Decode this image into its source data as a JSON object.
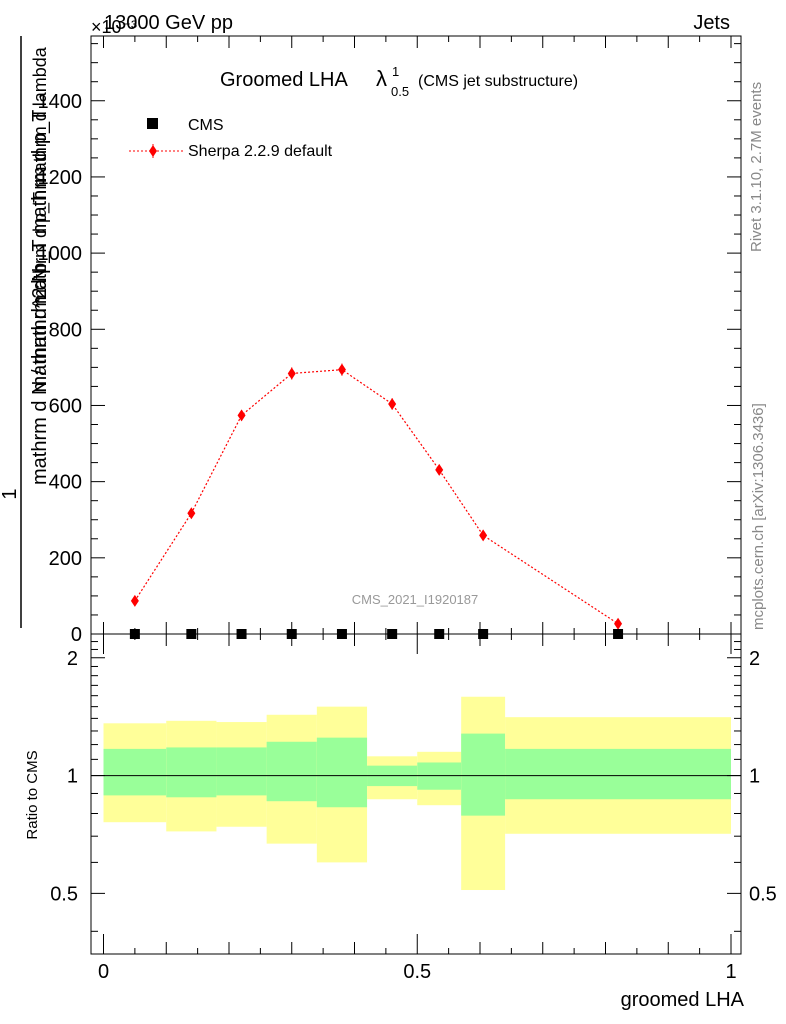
{
  "header": {
    "energy": "13000 GeV pp",
    "category": "Jets"
  },
  "side_labels": {
    "rivet": "Rivet 3.1.10,  2.7M events",
    "mcplots": "mcplots.cern.ch [arXiv:1306.3436]"
  },
  "watermark": "CMS_2021_I1920187",
  "colors": {
    "sherpa": "#ff0000",
    "band_inner": "#99ff99",
    "band_outer": "#ffff99",
    "data": "#000000"
  },
  "chart_data": [
    {
      "type": "scatter",
      "title": {
        "main": "Groomed LHA",
        "lambda": "λ",
        "sup": "1",
        "sub": "0.5",
        "note": "(CMS jet substructure)"
      },
      "ylabel": {
        "prefix": "1",
        "denominator": "mathrm d N / mathrm d p_T mathrm d p_T",
        "numerator": "mathrm d^2 N",
        "numerator_tail": "mathrm d p_T mathrm d lambda"
      },
      "y_multiplier": "×10⁻³",
      "ylim": [
        0,
        1570
      ],
      "yticks": [
        0,
        200,
        400,
        600,
        800,
        1000,
        1200,
        1400
      ],
      "ytick_labels": [
        "0",
        "200",
        "400",
        "600",
        "800",
        "1000",
        "1200",
        "1400"
      ],
      "legend": [
        "CMS",
        "Sherpa 2.2.9 default"
      ],
      "series": [
        {
          "name": "CMS",
          "marker": "square",
          "x": [
            0.05,
            0.14,
            0.22,
            0.3,
            0.38,
            0.46,
            0.535,
            0.605,
            0.82
          ],
          "y": [
            0,
            0,
            0,
            0,
            0,
            0,
            0,
            0,
            0
          ]
        },
        {
          "name": "Sherpa 2.2.9 default",
          "marker": "diamond",
          "line": "dotted",
          "x": [
            0.05,
            0.14,
            0.22,
            0.3,
            0.38,
            0.46,
            0.535,
            0.605,
            0.82
          ],
          "y": [
            87,
            317,
            574,
            684,
            694,
            604,
            431,
            259,
            27
          ],
          "yerr": [
            6,
            10,
            14,
            16,
            16,
            15,
            12,
            8,
            4
          ]
        }
      ]
    },
    {
      "type": "area",
      "ylabel": "Ratio to CMS",
      "xlabel": "groomed LHA",
      "xlim": [
        0,
        1
      ],
      "xticks": [
        0,
        0.5,
        1
      ],
      "xtick_labels": [
        "0",
        "0.5",
        "1"
      ],
      "ylim": [
        0.35,
        2.3
      ],
      "yticks": [
        0.5,
        1,
        2
      ],
      "ytick_labels": [
        "0.5",
        "1",
        "2"
      ],
      "reference_line": 1,
      "bands": [
        {
          "x_low": 0.0,
          "x_high": 0.1,
          "inner": [
            0.89,
            1.17
          ],
          "outer": [
            0.76,
            1.36
          ]
        },
        {
          "x_low": 0.1,
          "x_high": 0.18,
          "inner": [
            0.88,
            1.18
          ],
          "outer": [
            0.72,
            1.38
          ]
        },
        {
          "x_low": 0.18,
          "x_high": 0.26,
          "inner": [
            0.89,
            1.18
          ],
          "outer": [
            0.74,
            1.37
          ]
        },
        {
          "x_low": 0.26,
          "x_high": 0.34,
          "inner": [
            0.86,
            1.22
          ],
          "outer": [
            0.67,
            1.43
          ]
        },
        {
          "x_low": 0.34,
          "x_high": 0.42,
          "inner": [
            0.83,
            1.25
          ],
          "outer": [
            0.6,
            1.5
          ]
        },
        {
          "x_low": 0.42,
          "x_high": 0.5,
          "inner": [
            0.94,
            1.06
          ],
          "outer": [
            0.87,
            1.12
          ]
        },
        {
          "x_low": 0.5,
          "x_high": 0.57,
          "inner": [
            0.92,
            1.08
          ],
          "outer": [
            0.84,
            1.15
          ]
        },
        {
          "x_low": 0.57,
          "x_high": 0.64,
          "inner": [
            0.79,
            1.28
          ],
          "outer": [
            0.51,
            1.59
          ]
        },
        {
          "x_low": 0.64,
          "x_high": 1.0,
          "inner": [
            0.87,
            1.17
          ],
          "outer": [
            0.71,
            1.41
          ]
        }
      ]
    }
  ]
}
